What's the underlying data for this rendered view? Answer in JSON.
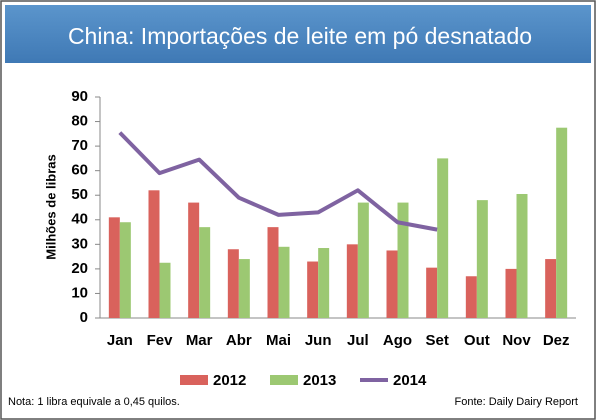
{
  "chart_data": {
    "type": "bar_line",
    "title": "China: Importações de leite em pó desnatado",
    "ylabel": "Milhões de libras",
    "note": "Nota: 1 libra equivale a 0,45 quilos.",
    "source": "Fonte: Daily Dairy Report",
    "categories": [
      "Jan",
      "Fev",
      "Mar",
      "Abr",
      "Mai",
      "Jun",
      "Jul",
      "Ago",
      "Set",
      "Out",
      "Nov",
      "Dez"
    ],
    "series": [
      {
        "name": "2012",
        "type": "bar",
        "color": "#d9625c",
        "values": [
          41,
          52,
          47,
          28,
          37,
          23,
          30,
          27.5,
          20.5,
          17,
          20,
          24
        ]
      },
      {
        "name": "2013",
        "type": "bar",
        "color": "#9cc872",
        "values": [
          39,
          22.5,
          37,
          24,
          29,
          28.5,
          47,
          47,
          65,
          48,
          50.5,
          77.5
        ]
      },
      {
        "name": "2014",
        "type": "line",
        "color": "#7f63a1",
        "values": [
          75.5,
          59,
          64.5,
          49,
          42,
          43,
          52,
          39,
          36,
          null,
          null,
          null
        ]
      }
    ],
    "ylim": [
      0,
      90
    ],
    "yticks": [
      0,
      10,
      20,
      30,
      40,
      50,
      60,
      70,
      80,
      90
    ],
    "grid": false
  }
}
